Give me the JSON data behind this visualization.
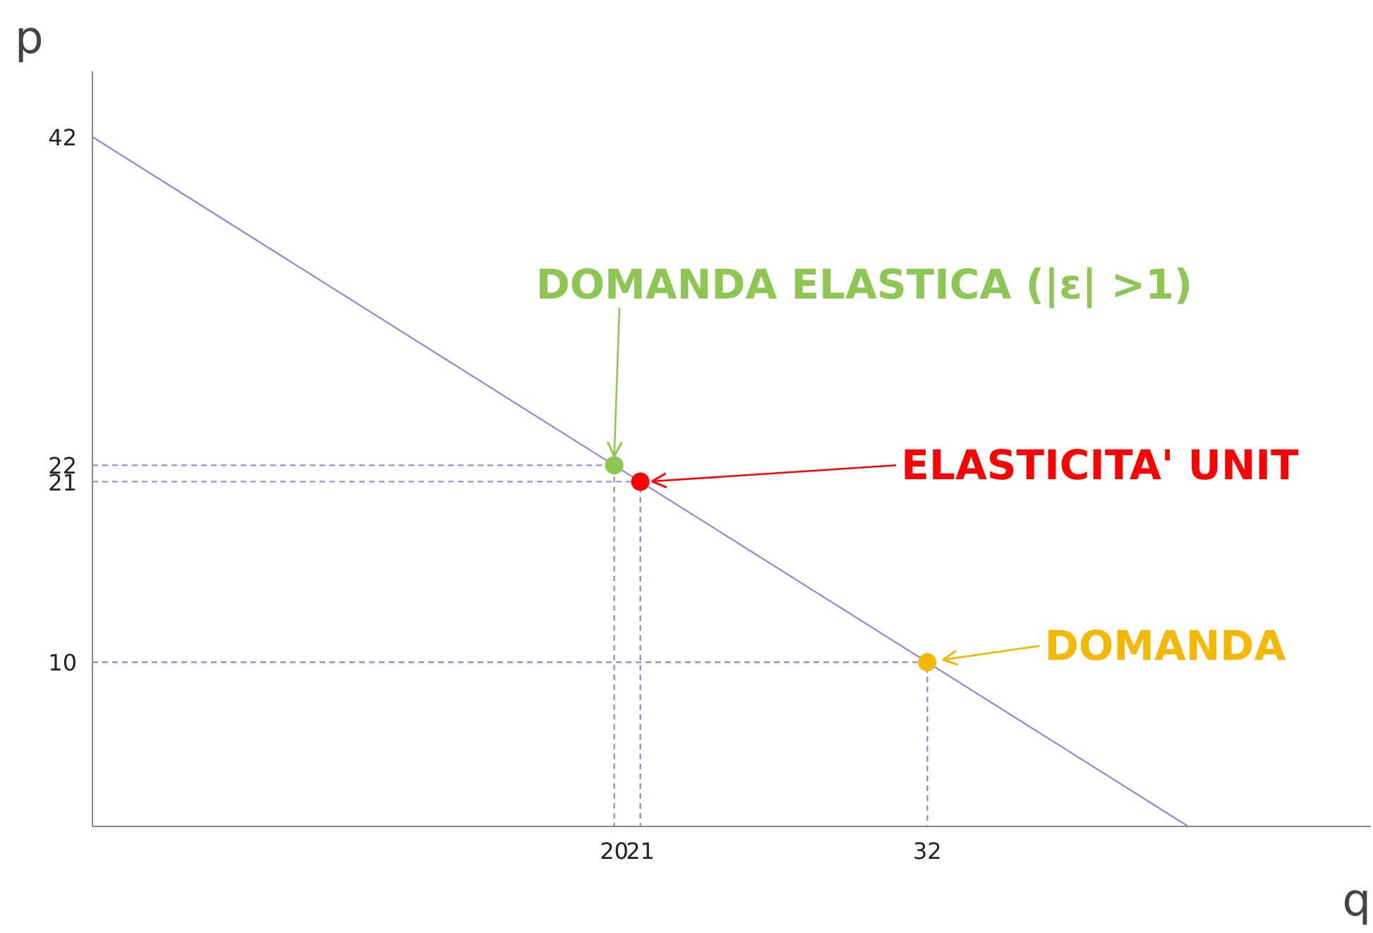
{
  "chart_data": {
    "type": "line",
    "xlabel": "q",
    "ylabel": "p",
    "xlim": [
      0,
      49
    ],
    "ylim": [
      0,
      46
    ],
    "xticks": [
      20,
      21,
      32
    ],
    "yticks": [
      10,
      21,
      22,
      42
    ],
    "grid": false,
    "series": [
      {
        "x": [
          0,
          42
        ],
        "values": [
          42,
          0
        ],
        "color": "#8a87d8"
      },
      {
        "x": [
          0,
          20,
          20
        ],
        "values": [
          22,
          22,
          0
        ],
        "color": "#8a87d8",
        "line_style": "dashed"
      },
      {
        "x": [
          0,
          21,
          21
        ],
        "values": [
          21,
          21,
          0
        ],
        "color": "#8a87d8",
        "line_style": "dashed"
      },
      {
        "x": [
          0,
          32,
          32
        ],
        "values": [
          10,
          10,
          0
        ],
        "color": "#8a87d8",
        "line_style": "dashed"
      },
      {
        "type": "scatter",
        "x": [
          20,
          21,
          32
        ],
        "values": [
          22,
          21,
          10
        ],
        "colors": [
          "#8dc653",
          "#ff0000",
          "#f5b800"
        ]
      }
    ],
    "annotations": [
      {
        "text": "DOMANDA ELASTICA (|ε| >1)",
        "x": 20,
        "y": 22
      },
      {
        "text": "ELASTICITA' UNIT",
        "x": 21,
        "y": 21
      },
      {
        "text": "DOMANDA",
        "x": 32,
        "y": 10
      }
    ]
  }
}
